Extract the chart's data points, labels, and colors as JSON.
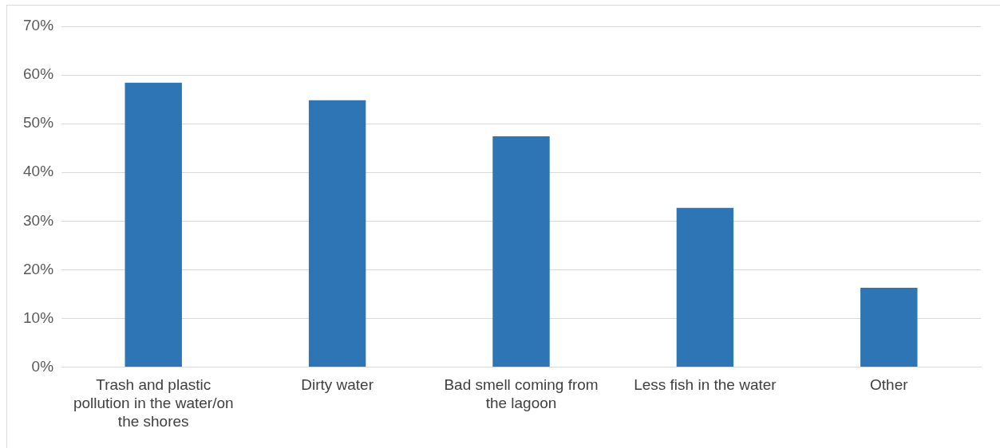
{
  "chart_data": {
    "type": "bar",
    "categories": [
      "Trash and plastic pollution in the water/on the shores",
      "Dirty water",
      "Bad smell coming from the lagoon",
      "Less fish in the water",
      "Other"
    ],
    "values": [
      58.4,
      54.8,
      47.4,
      32.7,
      16.3
    ],
    "color": "#2e75b6",
    "ylim": [
      0,
      70
    ],
    "yticks": [
      {
        "value": 0,
        "label": "0%"
      },
      {
        "value": 10,
        "label": "10%"
      },
      {
        "value": 20,
        "label": "20%"
      },
      {
        "value": 30,
        "label": "30%"
      },
      {
        "value": 40,
        "label": "40%"
      },
      {
        "value": 50,
        "label": "50%"
      },
      {
        "value": 60,
        "label": "60%"
      },
      {
        "value": 70,
        "label": "70%"
      }
    ],
    "grid": "y",
    "legend": false
  }
}
